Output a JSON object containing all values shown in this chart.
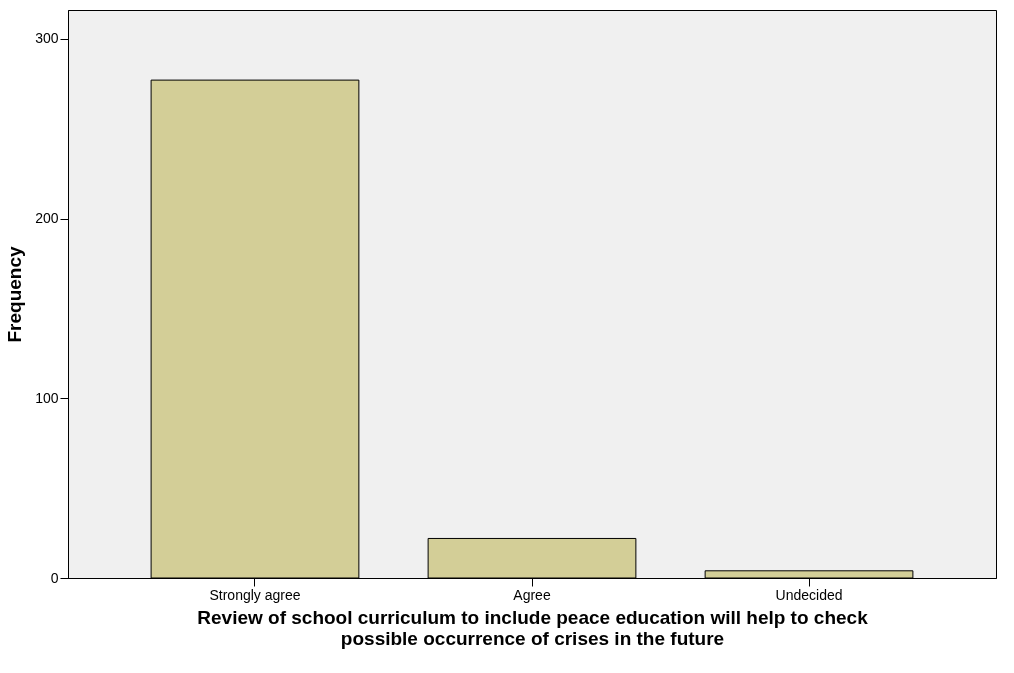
{
  "chart_data": {
    "type": "bar",
    "categories": [
      "Strongly agree",
      "Agree",
      "Undecided"
    ],
    "values": [
      277,
      22,
      4
    ],
    "color": "#d3ce97",
    "xlabel": "Review of school curriculum to include peace education will help to check possible occurrence of crises in the future",
    "ylabel": "Frequency",
    "ylim": [
      0,
      316
    ],
    "yticks": [
      0,
      100,
      200,
      300
    ],
    "grid": false
  }
}
